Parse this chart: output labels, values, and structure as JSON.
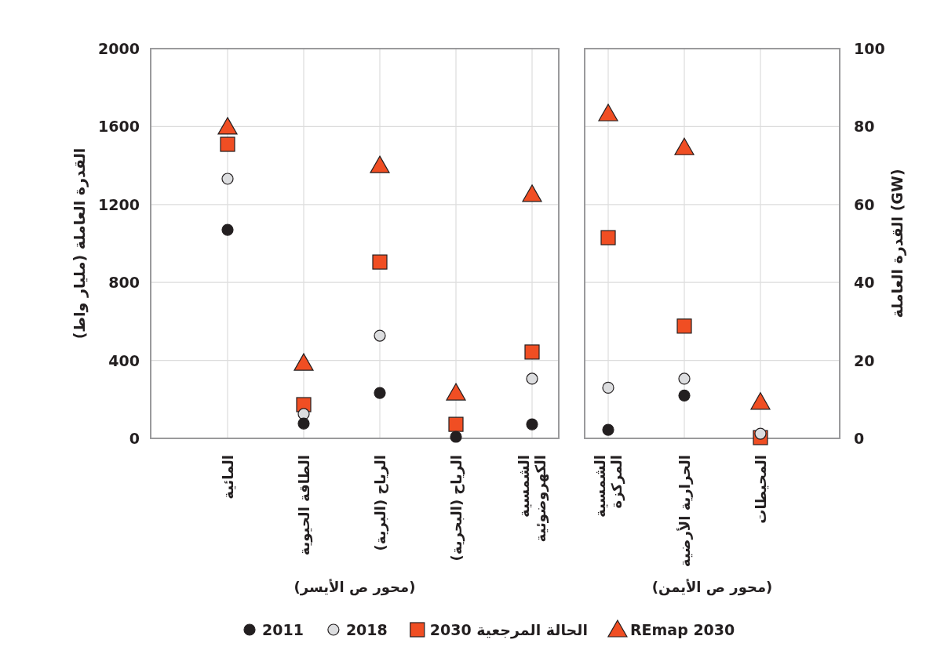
{
  "chart_data": [
    {
      "type": "scatter",
      "categories": [
        "المائية",
        "الطاقة الحيوية",
        "الرياح (البرية)",
        "الرياح (البحرية)",
        "الشمسية\nالكهروضوئية"
      ],
      "ylabel": "القدرة العاملة (مليار واط)",
      "xlabel": "(محور ص الأيسر)",
      "ylim": [
        0,
        2000
      ],
      "yticks": [
        0,
        400,
        800,
        1200,
        1600,
        2000
      ],
      "grid": true,
      "legend": "bottom",
      "series": [
        {
          "name": "2011",
          "color": "#231f20",
          "marker": "circle",
          "values": [
            1070,
            76,
            233,
            8,
            72
          ]
        },
        {
          "name": "2018",
          "color": "#dcdddf",
          "marker": "circle",
          "values": [
            1332,
            125,
            527,
            null,
            306
          ]
        },
        {
          "name": "الحالة المرجعية 2030",
          "color": "#f04e23",
          "marker": "square",
          "values": [
            1509,
            173,
            905,
            72,
            443
          ]
        },
        {
          "name": "REmap 2030",
          "color": "#f04e23",
          "marker": "triangle",
          "values": [
            1598,
            386,
            1400,
            233,
            1252
          ]
        }
      ]
    },
    {
      "type": "scatter",
      "categories": [
        "الشمسية\nالمركزة",
        "الحرارية الأرضية",
        "المحيطات"
      ],
      "y2label": "القدرة العاملة (GW)",
      "xlabel": "(محور ص الأيمن)",
      "y2lim": [
        0,
        100
      ],
      "y2ticks": [
        0,
        20,
        40,
        60,
        80,
        100
      ],
      "grid": true,
      "series": [
        {
          "axis": "y2",
          "color": "#231f20",
          "marker": "circle",
          "values": [
            2.2,
            11,
            null
          ]
        },
        {
          "axis": "y2",
          "color": "#dcdddf",
          "marker": "circle",
          "values": [
            13,
            15.3,
            1.2
          ]
        },
        {
          "axis": "y2",
          "color": "#f04e23",
          "marker": "square",
          "values": [
            51.5,
            28.8,
            0.2
          ]
        },
        {
          "axis": "y2",
          "color": "#f04e23",
          "marker": "triangle",
          "values": [
            83.3,
            74.6,
            9.3
          ]
        }
      ]
    }
  ]
}
